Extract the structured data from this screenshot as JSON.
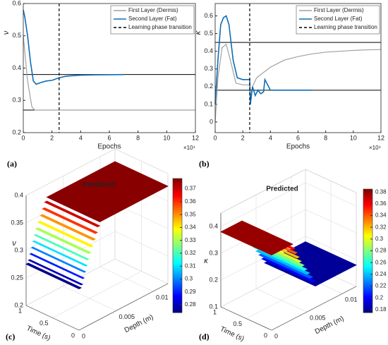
{
  "chart_data": [
    {
      "type": "line",
      "panel_label": "(a)",
      "y_label": "ν",
      "x_label": "Epochs",
      "x_exponent": "×10⁴",
      "xlim": [
        0,
        12
      ],
      "xticks": [
        0,
        2,
        4,
        6,
        8,
        10,
        12
      ],
      "ylim": [
        0.2,
        0.6
      ],
      "yticks": [
        0.2,
        0.3,
        0.4,
        0.5,
        0.6
      ],
      "legend": "upper right",
      "series": [
        {
          "name": "First Layer (Dermis)",
          "color": "#a0a0a0",
          "x": [
            0,
            0.3,
            0.6,
            0.8,
            1,
            12
          ],
          "values": [
            0.5,
            0.36,
            0.28,
            0.27,
            0.27,
            0.27
          ]
        },
        {
          "name": "Second Layer (Fat)",
          "color": "#0e6db5",
          "x": [
            0,
            0.1,
            0.3,
            0.5,
            0.7,
            0.9,
            1.2,
            1.6,
            2,
            2.5,
            3,
            4,
            5,
            7
          ],
          "values": [
            0.58,
            0.56,
            0.5,
            0.42,
            0.36,
            0.35,
            0.355,
            0.36,
            0.362,
            0.37,
            0.375,
            0.378,
            0.379,
            0.38
          ]
        }
      ],
      "vline": {
        "name": "Learning phase transition",
        "x": 2.5,
        "color": "#000000"
      },
      "hlines": [
        0.38,
        0.27
      ],
      "hline_color": "#000000"
    },
    {
      "type": "line",
      "panel_label": "(b)",
      "y_label": "κ",
      "x_label": "Epochs",
      "x_exponent": "×10⁴",
      "xlim": [
        0,
        12
      ],
      "xticks": [
        0,
        2,
        4,
        6,
        8,
        10,
        12
      ],
      "ylim": [
        -0.06,
        0.67
      ],
      "yticks": [
        0,
        0.1,
        0.2,
        0.3,
        0.4,
        0.5,
        0.6
      ],
      "legend": "upper right",
      "series": [
        {
          "name": "First Layer (Dermis)",
          "color": "#a0a0a0",
          "x": [
            0,
            0.2,
            0.5,
            0.8,
            1.1,
            1.5,
            2,
            2.5,
            2.55,
            2.7,
            3,
            3.5,
            4,
            5,
            6,
            7,
            8,
            9,
            10,
            11,
            12
          ],
          "values": [
            0,
            0.25,
            0.42,
            0.44,
            0.35,
            0.22,
            0.21,
            0.21,
            0.13,
            0.2,
            0.25,
            0.28,
            0.31,
            0.35,
            0.37,
            0.385,
            0.395,
            0.4,
            0.405,
            0.408,
            0.41
          ]
        },
        {
          "name": "Second Layer (Fat)",
          "color": "#0e6db5",
          "x": [
            0,
            0.2,
            0.4,
            0.6,
            0.8,
            1,
            1.3,
            1.6,
            2,
            2.5,
            2.55,
            2.7,
            2.9,
            3.1,
            3.3,
            3.5,
            3.6,
            4,
            5,
            7
          ],
          "values": [
            0.1,
            0.35,
            0.55,
            0.59,
            0.6,
            0.55,
            0.35,
            0.25,
            0.24,
            0.24,
            0.1,
            0.2,
            0.15,
            0.18,
            0.16,
            0.17,
            0.24,
            0.18,
            0.18,
            0.18
          ]
        }
      ],
      "vline": {
        "name": "Learning phase transition",
        "x": 2.5,
        "color": "#000000"
      },
      "hlines": [
        0.45,
        0.18
      ],
      "hline_color": "#000000"
    },
    {
      "type": "scatter3d",
      "panel_label": "(c)",
      "title": "Predicted",
      "x_label": "Time (s)",
      "y_label": "Depth (m)",
      "z_label": "ν",
      "xlim": [
        0,
        1
      ],
      "xticks": [
        0,
        0.5,
        1
      ],
      "ylim": [
        0,
        0.012
      ],
      "yticks": [
        0,
        0.005,
        0.01
      ],
      "zlim": [
        0.2,
        0.4
      ],
      "zticks": [
        0.2,
        0.25,
        0.3,
        0.35,
        0.4
      ],
      "clim": [
        0.274,
        0.378
      ],
      "cticks": [
        0.28,
        0.29,
        0.3,
        0.31,
        0.32,
        0.33,
        0.34,
        0.35,
        0.36,
        0.37
      ],
      "strip_z": [
        0.377,
        0.37,
        0.36,
        0.35,
        0.34,
        0.33,
        0.32,
        0.31,
        0.3,
        0.29,
        0.28,
        0.275
      ],
      "strip_depth": [
        [
          0.0028,
          0.012
        ],
        [
          0.0025,
          0.0028
        ],
        [
          0.0022,
          0.0025
        ],
        [
          0.0019,
          0.0022
        ],
        [
          0.0016,
          0.0019
        ],
        [
          0.0013,
          0.0016
        ],
        [
          0.0011,
          0.0013
        ],
        [
          0.0009,
          0.0011
        ],
        [
          0.0007,
          0.0009
        ],
        [
          0.0005,
          0.0007
        ],
        [
          0.0003,
          0.0005
        ],
        [
          0,
          0.0003
        ]
      ]
    },
    {
      "type": "scatter3d",
      "panel_label": "(d)",
      "title": "Predicted",
      "x_label": "Time (s)",
      "y_label": "Depth (m)",
      "z_label": "κ",
      "xlim": [
        0,
        1
      ],
      "xticks": [
        0,
        0.5,
        1
      ],
      "ylim": [
        0,
        0.012
      ],
      "yticks": [
        0,
        0.005,
        0.01
      ],
      "zlim": [
        0.1,
        0.45
      ],
      "zticks": [
        0.1,
        0.2,
        0.3,
        0.4
      ],
      "clim": [
        0.175,
        0.385
      ],
      "cticks": [
        0.18,
        0.2,
        0.22,
        0.24,
        0.26,
        0.28,
        0.3,
        0.32,
        0.34,
        0.36,
        0.38
      ],
      "strip_z": [
        0.18,
        0.2,
        0.22,
        0.24,
        0.26,
        0.28,
        0.3,
        0.32,
        0.34,
        0.36,
        0.38
      ],
      "strip_depth": [
        [
          0.0062,
          0.012
        ],
        [
          0.0058,
          0.0062
        ],
        [
          0.0054,
          0.0058
        ],
        [
          0.005,
          0.0054
        ],
        [
          0.0046,
          0.005
        ],
        [
          0.0042,
          0.0046
        ],
        [
          0.0039,
          0.0042
        ],
        [
          0.0036,
          0.0039
        ],
        [
          0.0033,
          0.0036
        ],
        [
          0.003,
          0.0033
        ],
        [
          0,
          0.003
        ]
      ]
    }
  ]
}
